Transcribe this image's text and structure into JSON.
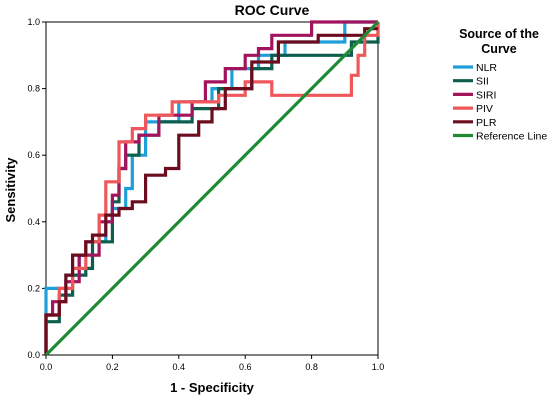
{
  "chart_data": {
    "type": "line",
    "title": "ROC Curve",
    "xlabel": "1 - Specificity",
    "ylabel": "Sensitivity",
    "xlim": [
      0,
      1
    ],
    "ylim": [
      0,
      1
    ],
    "xticks": [
      "0.0",
      "0.2",
      "0.4",
      "0.6",
      "0.8",
      "1.0"
    ],
    "yticks": [
      "0.0",
      "0.2",
      "0.4",
      "0.6",
      "0.8",
      "1.0"
    ],
    "grid": false,
    "legend": {
      "title_line1": "Source of the",
      "title_line2": "Curve",
      "position": "right"
    },
    "series": [
      {
        "name": "NLR",
        "color": "#1f9fd9",
        "points": [
          [
            0,
            0
          ],
          [
            0,
            0.2
          ],
          [
            0.06,
            0.2
          ],
          [
            0.06,
            0.24
          ],
          [
            0.1,
            0.24
          ],
          [
            0.1,
            0.3
          ],
          [
            0.12,
            0.3
          ],
          [
            0.12,
            0.34
          ],
          [
            0.18,
            0.34
          ],
          [
            0.18,
            0.4
          ],
          [
            0.2,
            0.4
          ],
          [
            0.2,
            0.44
          ],
          [
            0.24,
            0.44
          ],
          [
            0.24,
            0.5
          ],
          [
            0.26,
            0.5
          ],
          [
            0.26,
            0.6
          ],
          [
            0.3,
            0.6
          ],
          [
            0.3,
            0.7
          ],
          [
            0.4,
            0.7
          ],
          [
            0.4,
            0.76
          ],
          [
            0.5,
            0.76
          ],
          [
            0.5,
            0.8
          ],
          [
            0.56,
            0.8
          ],
          [
            0.56,
            0.86
          ],
          [
            0.64,
            0.86
          ],
          [
            0.64,
            0.9
          ],
          [
            0.72,
            0.9
          ],
          [
            0.72,
            0.94
          ],
          [
            0.9,
            0.94
          ],
          [
            0.9,
            1
          ],
          [
            1,
            1
          ]
        ]
      },
      {
        "name": "SII",
        "color": "#0d5e4e",
        "points": [
          [
            0,
            0
          ],
          [
            0,
            0.1
          ],
          [
            0.04,
            0.1
          ],
          [
            0.04,
            0.18
          ],
          [
            0.08,
            0.18
          ],
          [
            0.08,
            0.24
          ],
          [
            0.12,
            0.24
          ],
          [
            0.12,
            0.26
          ],
          [
            0.14,
            0.26
          ],
          [
            0.14,
            0.34
          ],
          [
            0.2,
            0.34
          ],
          [
            0.2,
            0.46
          ],
          [
            0.22,
            0.46
          ],
          [
            0.22,
            0.56
          ],
          [
            0.24,
            0.56
          ],
          [
            0.24,
            0.6
          ],
          [
            0.28,
            0.6
          ],
          [
            0.28,
            0.66
          ],
          [
            0.34,
            0.66
          ],
          [
            0.34,
            0.7
          ],
          [
            0.44,
            0.7
          ],
          [
            0.44,
            0.74
          ],
          [
            0.52,
            0.74
          ],
          [
            0.52,
            0.8
          ],
          [
            0.62,
            0.8
          ],
          [
            0.62,
            0.86
          ],
          [
            0.68,
            0.86
          ],
          [
            0.68,
            0.9
          ],
          [
            0.92,
            0.9
          ],
          [
            0.92,
            0.94
          ],
          [
            1,
            0.94
          ],
          [
            1,
            1
          ]
        ]
      },
      {
        "name": "SIRI",
        "color": "#a3145e",
        "points": [
          [
            0,
            0
          ],
          [
            0,
            0.12
          ],
          [
            0.02,
            0.12
          ],
          [
            0.02,
            0.16
          ],
          [
            0.06,
            0.16
          ],
          [
            0.06,
            0.22
          ],
          [
            0.1,
            0.22
          ],
          [
            0.1,
            0.3
          ],
          [
            0.16,
            0.3
          ],
          [
            0.16,
            0.4
          ],
          [
            0.2,
            0.4
          ],
          [
            0.2,
            0.48
          ],
          [
            0.22,
            0.48
          ],
          [
            0.22,
            0.56
          ],
          [
            0.24,
            0.56
          ],
          [
            0.24,
            0.64
          ],
          [
            0.28,
            0.64
          ],
          [
            0.28,
            0.66
          ],
          [
            0.34,
            0.66
          ],
          [
            0.34,
            0.72
          ],
          [
            0.44,
            0.72
          ],
          [
            0.44,
            0.76
          ],
          [
            0.48,
            0.76
          ],
          [
            0.48,
            0.82
          ],
          [
            0.54,
            0.82
          ],
          [
            0.54,
            0.86
          ],
          [
            0.6,
            0.86
          ],
          [
            0.6,
            0.9
          ],
          [
            0.64,
            0.9
          ],
          [
            0.64,
            0.92
          ],
          [
            0.68,
            0.92
          ],
          [
            0.68,
            0.96
          ],
          [
            0.8,
            0.96
          ],
          [
            0.8,
            1
          ],
          [
            1,
            1
          ]
        ]
      },
      {
        "name": "PIV",
        "color": "#f0575a",
        "points": [
          [
            0,
            0
          ],
          [
            0,
            0.12
          ],
          [
            0.04,
            0.12
          ],
          [
            0.04,
            0.2
          ],
          [
            0.08,
            0.2
          ],
          [
            0.08,
            0.26
          ],
          [
            0.12,
            0.26
          ],
          [
            0.12,
            0.34
          ],
          [
            0.16,
            0.34
          ],
          [
            0.16,
            0.42
          ],
          [
            0.18,
            0.42
          ],
          [
            0.18,
            0.52
          ],
          [
            0.22,
            0.52
          ],
          [
            0.22,
            0.64
          ],
          [
            0.26,
            0.64
          ],
          [
            0.26,
            0.68
          ],
          [
            0.3,
            0.68
          ],
          [
            0.3,
            0.72
          ],
          [
            0.38,
            0.72
          ],
          [
            0.38,
            0.76
          ],
          [
            0.52,
            0.76
          ],
          [
            0.52,
            0.78
          ],
          [
            0.6,
            0.78
          ],
          [
            0.6,
            0.82
          ],
          [
            0.68,
            0.82
          ],
          [
            0.68,
            0.78
          ],
          [
            0.92,
            0.78
          ],
          [
            0.92,
            0.84
          ],
          [
            0.94,
            0.84
          ],
          [
            0.94,
            0.9
          ],
          [
            0.96,
            0.9
          ],
          [
            0.96,
            0.96
          ],
          [
            1,
            0.96
          ],
          [
            1,
            1
          ]
        ]
      },
      {
        "name": "PLR",
        "color": "#6b0d1f",
        "points": [
          [
            0,
            0
          ],
          [
            0,
            0.12
          ],
          [
            0.04,
            0.12
          ],
          [
            0.04,
            0.16
          ],
          [
            0.06,
            0.16
          ],
          [
            0.06,
            0.24
          ],
          [
            0.08,
            0.24
          ],
          [
            0.08,
            0.3
          ],
          [
            0.12,
            0.3
          ],
          [
            0.12,
            0.34
          ],
          [
            0.14,
            0.34
          ],
          [
            0.14,
            0.36
          ],
          [
            0.18,
            0.36
          ],
          [
            0.18,
            0.42
          ],
          [
            0.22,
            0.42
          ],
          [
            0.22,
            0.44
          ],
          [
            0.26,
            0.44
          ],
          [
            0.26,
            0.46
          ],
          [
            0.3,
            0.46
          ],
          [
            0.3,
            0.54
          ],
          [
            0.36,
            0.54
          ],
          [
            0.36,
            0.56
          ],
          [
            0.4,
            0.56
          ],
          [
            0.4,
            0.66
          ],
          [
            0.46,
            0.66
          ],
          [
            0.46,
            0.7
          ],
          [
            0.5,
            0.7
          ],
          [
            0.5,
            0.74
          ],
          [
            0.54,
            0.74
          ],
          [
            0.54,
            0.8
          ],
          [
            0.62,
            0.8
          ],
          [
            0.62,
            0.88
          ],
          [
            0.7,
            0.88
          ],
          [
            0.7,
            0.94
          ],
          [
            0.82,
            0.94
          ],
          [
            0.82,
            0.96
          ],
          [
            0.96,
            0.96
          ],
          [
            0.96,
            0.98
          ],
          [
            1,
            0.98
          ]
        ]
      },
      {
        "name": "Reference Line",
        "color": "#1e8a35",
        "points": [
          [
            0,
            0
          ],
          [
            1,
            1
          ]
        ]
      }
    ]
  }
}
